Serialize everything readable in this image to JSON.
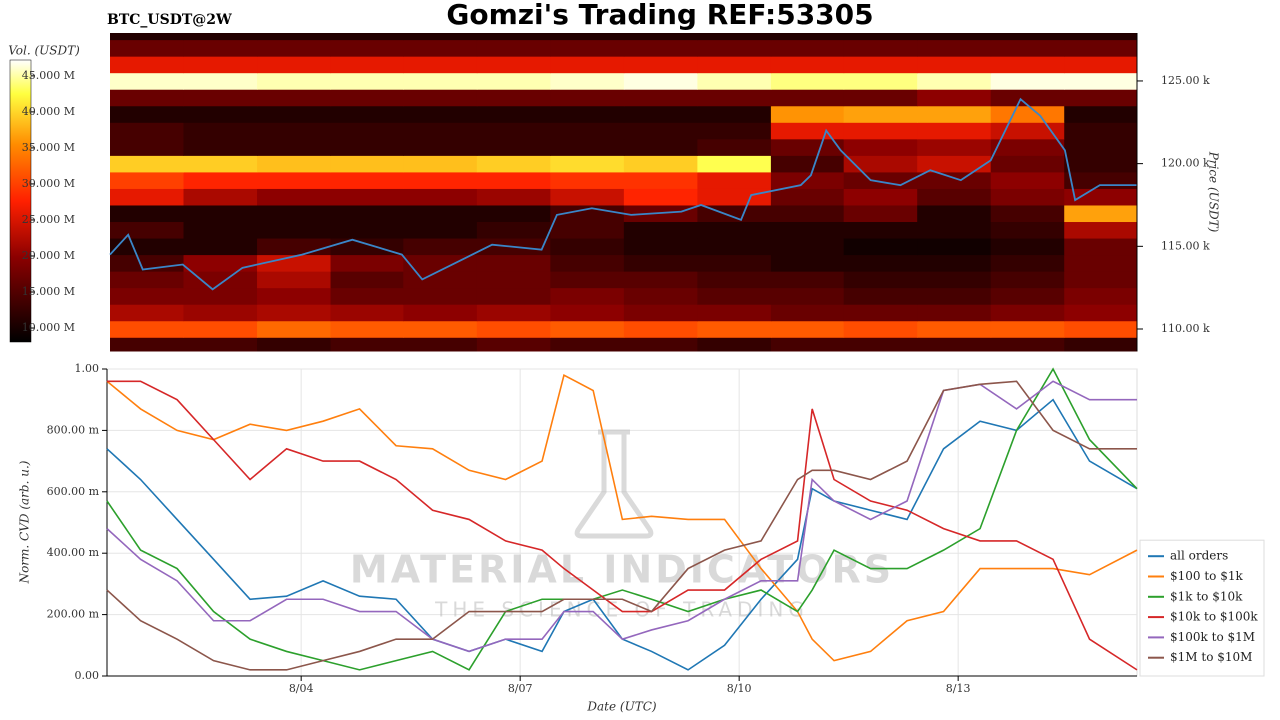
{
  "chart_data": [
    {
      "type": "heatmap",
      "title": "Gomzi's Trading REF:53305",
      "subtitle": "BTC_USDT@2W",
      "y_label": "Price (USDT)",
      "xlim": [
        1.34,
        15.45
      ],
      "ylim": [
        108670,
        127900
      ],
      "yticks": [
        {
          "value": 110000,
          "label": "110.00 k"
        },
        {
          "value": 115000,
          "label": "115.00 k"
        },
        {
          "value": 120000,
          "label": "120.00 k"
        },
        {
          "value": 125000,
          "label": "125.00 k"
        }
      ],
      "x_bins": [
        1.34,
        2.35,
        3.36,
        4.37,
        5.37,
        6.38,
        7.39,
        8.4,
        9.41,
        10.42,
        11.42,
        12.43,
        13.44,
        14.45,
        15.45
      ],
      "y_bins": [
        108670,
        109500,
        110500,
        111500,
        112500,
        113500,
        114500,
        115500,
        116500,
        117500,
        118500,
        119500,
        120500,
        121500,
        122500,
        123500,
        124500,
        125500,
        126500,
        127500,
        127900
      ],
      "z": [
        [
          12,
          12,
          11,
          12,
          12,
          13,
          12,
          12,
          11,
          12,
          12,
          12,
          12,
          11
        ],
        [
          27,
          27,
          29,
          28,
          28,
          27,
          28,
          27,
          28,
          28,
          27,
          28,
          28,
          27
        ],
        [
          18,
          17,
          18,
          17,
          16,
          17,
          16,
          15,
          15,
          14,
          14,
          14,
          15,
          16
        ],
        [
          15,
          15,
          16,
          14,
          14,
          14,
          15,
          14,
          13,
          13,
          12,
          12,
          13,
          15
        ],
        [
          14,
          15,
          18,
          13,
          14,
          14,
          13,
          13,
          12,
          12,
          11,
          11,
          12,
          14
        ],
        [
          12,
          16,
          20,
          15,
          14,
          14,
          12,
          11,
          11,
          10,
          10,
          10,
          11,
          14
        ],
        [
          10,
          10,
          12,
          11,
          12,
          12,
          11,
          10,
          10,
          10,
          9,
          9,
          10,
          14
        ],
        [
          12,
          10,
          10,
          10,
          10,
          11,
          12,
          10,
          10,
          10,
          10,
          10,
          11,
          18
        ],
        [
          10,
          10,
          10,
          10,
          10,
          10,
          12,
          14,
          12,
          12,
          14,
          10,
          12,
          33
        ],
        [
          22,
          18,
          16,
          16,
          16,
          17,
          20,
          24,
          22,
          14,
          16,
          13,
          15,
          16
        ],
        [
          26,
          24,
          24,
          24,
          24,
          24,
          25,
          25,
          22,
          15,
          14,
          14,
          16,
          12
        ],
        [
          36,
          36,
          35,
          35,
          35,
          36,
          37,
          36,
          40,
          12,
          18,
          20,
          14,
          11
        ],
        [
          12,
          11,
          11,
          11,
          11,
          11,
          11,
          11,
          12,
          14,
          16,
          17,
          15,
          11
        ],
        [
          12,
          11,
          11,
          11,
          11,
          11,
          11,
          11,
          11,
          22,
          22,
          22,
          20,
          11
        ],
        [
          10,
          10,
          10,
          10,
          10,
          10,
          10,
          10,
          10,
          32,
          33,
          33,
          30,
          10
        ],
        [
          14,
          14,
          14,
          14,
          14,
          14,
          14,
          14,
          14,
          14,
          14,
          16,
          14,
          14
        ],
        [
          45,
          45,
          44,
          44,
          44,
          44,
          45,
          46,
          44,
          42,
          42,
          44,
          46,
          46
        ],
        [
          22,
          22,
          22,
          22,
          22,
          22,
          22,
          22,
          22,
          22,
          22,
          22,
          22,
          22
        ],
        [
          14,
          14,
          14,
          14,
          14,
          14,
          14,
          14,
          14,
          14,
          14,
          14,
          14,
          14
        ],
        [
          10,
          10,
          10,
          10,
          10,
          10,
          10,
          10,
          10,
          10,
          10,
          10,
          10,
          10
        ]
      ],
      "colormap": [
        "#000000",
        "#8b0000",
        "#ff2000",
        "#ff8c00",
        "#ffff40",
        "#ffffff"
      ],
      "colorbar": {
        "label": "Vol. (USDT)",
        "lim": [
          8.06,
          47.2
        ],
        "ticks": [
          {
            "value": 10,
            "label": "10.000 M"
          },
          {
            "value": 15,
            "label": "15.000 M"
          },
          {
            "value": 20,
            "label": "20.000 M"
          },
          {
            "value": 25,
            "label": "25.000 M"
          },
          {
            "value": 30,
            "label": "30.000 M"
          },
          {
            "value": 35,
            "label": "35.000 M"
          },
          {
            "value": 40,
            "label": "40.000 M"
          },
          {
            "value": 45,
            "label": "45.000 M"
          }
        ]
      },
      "series": [
        {
          "color": "#3a86c8",
          "x": [
            1.34,
            1.59,
            1.79,
            2.34,
            2.75,
            3.16,
            3.98,
            4.67,
            5.35,
            5.63,
            6.18,
            6.59,
            7.27,
            7.48,
            7.96,
            8.5,
            9.19,
            9.46,
            10.01,
            10.15,
            10.83,
            10.97,
            11.18,
            11.38,
            11.79,
            12.2,
            12.61,
            13.03,
            13.44,
            13.85,
            14.12,
            14.46,
            14.6,
            14.94,
            15.45
          ],
          "values": [
            114500,
            115700,
            113600,
            113900,
            112400,
            113700,
            114500,
            115400,
            114500,
            113000,
            114200,
            115100,
            114800,
            116900,
            117300,
            116900,
            117100,
            117500,
            116600,
            118100,
            118700,
            119300,
            122000,
            120800,
            119000,
            118700,
            119600,
            119000,
            120200,
            123900,
            122900,
            120800,
            117800,
            118700,
            118700
          ]
        }
      ]
    },
    {
      "type": "line",
      "x_label": "Date (UTC)",
      "y_label": "Norm. CVD (arb. u.)",
      "watermark": [
        "MATERIAL INDICATORS",
        "THE SCIENCE OF TRADING"
      ],
      "xlim": [
        1.34,
        15.45
      ],
      "ylim": [
        0,
        1
      ],
      "grid": true,
      "legend": "lower right",
      "xticks": [
        {
          "value": 4,
          "label": "8/04"
        },
        {
          "value": 7,
          "label": "8/07"
        },
        {
          "value": 10,
          "label": "8/10"
        },
        {
          "value": 13,
          "label": "8/13"
        }
      ],
      "yticks": [
        {
          "value": 0,
          "label": "0.00"
        },
        {
          "value": 0.2,
          "label": "200.00 m"
        },
        {
          "value": 0.4,
          "label": "400.00 m"
        },
        {
          "value": 0.6,
          "label": "600.00 m"
        },
        {
          "value": 0.8,
          "label": "800.00 m"
        },
        {
          "value": 1,
          "label": "1.00"
        }
      ],
      "x": [
        1.34,
        1.8,
        2.3,
        2.8,
        3.3,
        3.8,
        4.3,
        4.8,
        5.3,
        5.8,
        6.3,
        6.8,
        7.3,
        7.6,
        8.0,
        8.4,
        8.8,
        9.3,
        9.8,
        10.3,
        10.8,
        11.0,
        11.3,
        11.8,
        12.3,
        12.8,
        13.3,
        13.8,
        14.3,
        14.8,
        15.45
      ],
      "series": [
        {
          "name": "all orders",
          "color": "#1f77b4",
          "values": [
            0.74,
            0.64,
            0.51,
            0.38,
            0.25,
            0.26,
            0.31,
            0.26,
            0.25,
            0.12,
            0.08,
            0.12,
            0.08,
            0.21,
            0.25,
            0.12,
            0.08,
            0.02,
            0.1,
            0.25,
            0.38,
            0.61,
            0.57,
            0.54,
            0.51,
            0.74,
            0.83,
            0.8,
            0.9,
            0.7,
            0.61
          ]
        },
        {
          "name": "$100 to $1k",
          "color": "#ff7f0e",
          "values": [
            0.96,
            0.87,
            0.8,
            0.77,
            0.82,
            0.8,
            0.83,
            0.87,
            0.75,
            0.74,
            0.67,
            0.64,
            0.7,
            0.98,
            0.93,
            0.51,
            0.52,
            0.51,
            0.51,
            0.35,
            0.21,
            0.12,
            0.05,
            0.08,
            0.18,
            0.21,
            0.35,
            0.35,
            0.35,
            0.33,
            0.41
          ]
        },
        {
          "name": "$1k to $10k",
          "color": "#2ca02c",
          "values": [
            0.57,
            0.41,
            0.35,
            0.21,
            0.12,
            0.08,
            0.05,
            0.02,
            0.05,
            0.08,
            0.02,
            0.21,
            0.25,
            0.25,
            0.25,
            0.28,
            0.25,
            0.21,
            0.25,
            0.28,
            0.21,
            0.28,
            0.41,
            0.35,
            0.35,
            0.41,
            0.48,
            0.8,
            1.0,
            0.77,
            0.61
          ]
        },
        {
          "name": "$10k to $100k",
          "color": "#d62728",
          "values": [
            0.96,
            0.96,
            0.9,
            0.77,
            0.64,
            0.74,
            0.7,
            0.7,
            0.64,
            0.54,
            0.51,
            0.44,
            0.41,
            0.35,
            0.28,
            0.21,
            0.21,
            0.28,
            0.28,
            0.38,
            0.44,
            0.87,
            0.64,
            0.57,
            0.54,
            0.48,
            0.44,
            0.44,
            0.38,
            0.12,
            0.02
          ]
        },
        {
          "name": "$100k to $1M",
          "color": "#9467bd",
          "values": [
            0.48,
            0.38,
            0.31,
            0.18,
            0.18,
            0.25,
            0.25,
            0.21,
            0.21,
            0.12,
            0.08,
            0.12,
            0.12,
            0.21,
            0.21,
            0.12,
            0.15,
            0.18,
            0.25,
            0.31,
            0.31,
            0.64,
            0.57,
            0.51,
            0.57,
            0.93,
            0.95,
            0.87,
            0.96,
            0.9,
            0.9
          ]
        },
        {
          "name": "$1M to $10M",
          "color": "#8c564b",
          "values": [
            0.28,
            0.18,
            0.12,
            0.05,
            0.02,
            0.02,
            0.05,
            0.08,
            0.12,
            0.12,
            0.21,
            0.21,
            0.21,
            0.25,
            0.25,
            0.25,
            0.21,
            0.35,
            0.41,
            0.44,
            0.64,
            0.67,
            0.67,
            0.64,
            0.7,
            0.93,
            0.95,
            0.96,
            0.8,
            0.74,
            0.74
          ]
        }
      ]
    }
  ]
}
